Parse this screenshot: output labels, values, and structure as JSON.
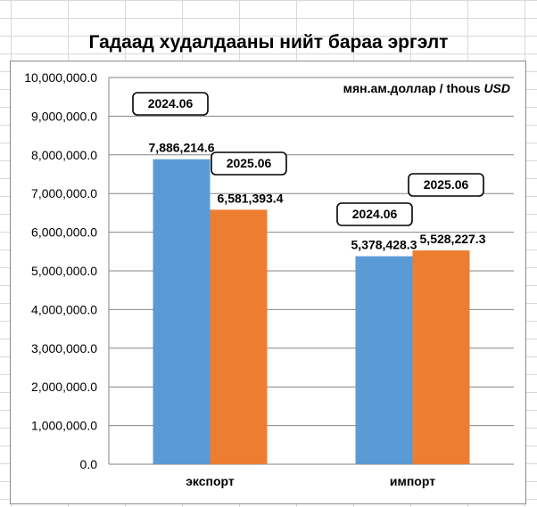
{
  "title": "Гадаад худалдааны нийт бараа эргэлт",
  "unit_note_main": "мян.ам.доллар / thous",
  "unit_note_currency": "USD",
  "colors": {
    "series_1": "#5b9bd5",
    "series_2": "#ed7d31",
    "gridline": "#868686"
  },
  "chart_data": {
    "type": "bar",
    "categories": [
      "экспорт",
      "импорт"
    ],
    "series": [
      {
        "name": "2024.06",
        "values": [
          7886214.6,
          5378428.3
        ]
      },
      {
        "name": "2025.06",
        "values": [
          6581393.4,
          5528227.3
        ]
      }
    ],
    "data_labels": [
      [
        "7,886,214.6",
        "5,378,428.3"
      ],
      [
        "6,581,393.4",
        "5,528,227.3"
      ]
    ],
    "ylim": [
      0,
      10000000
    ],
    "yticks": [
      0,
      1000000,
      2000000,
      3000000,
      4000000,
      5000000,
      6000000,
      7000000,
      8000000,
      9000000,
      10000000
    ],
    "ytick_labels": [
      "0.0",
      "1,000,000.0",
      "2,000,000.0",
      "3,000,000.0",
      "4,000,000.0",
      "5,000,000.0",
      "6,000,000.0",
      "7,000,000.0",
      "8,000,000.0",
      "9,000,000.0",
      "10,000,000.0"
    ],
    "grid": true,
    "legend": "none"
  }
}
